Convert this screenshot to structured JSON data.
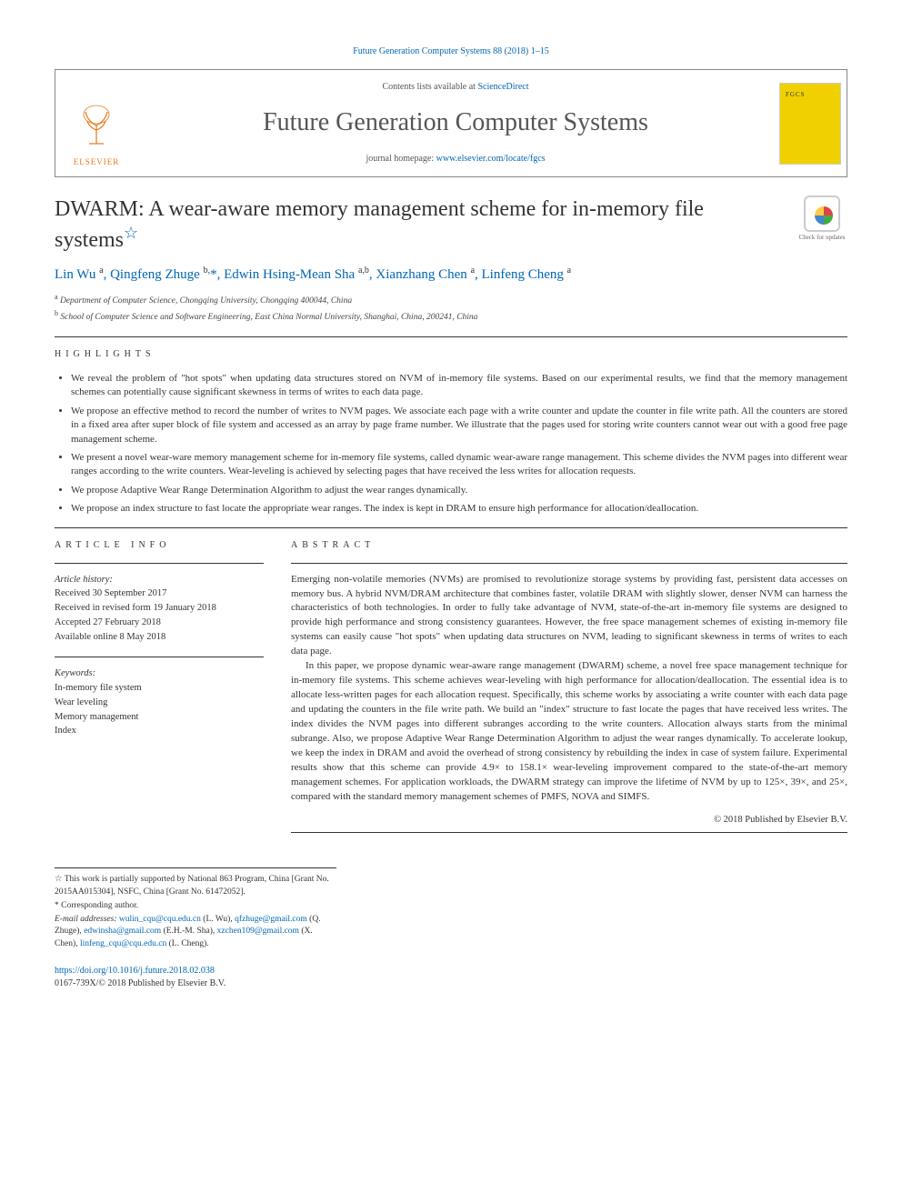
{
  "citation": "Future Generation Computer Systems 88 (2018) 1–15",
  "header": {
    "publisher": "ELSEVIER",
    "contents_prefix": "Contents lists available at ",
    "contents_link": "ScienceDirect",
    "journal": "Future Generation Computer Systems",
    "homepage_prefix": "journal homepage: ",
    "homepage_url": "www.elsevier.com/locate/fgcs"
  },
  "updates_badge": "Check for updates",
  "title": "DWARM: A wear-aware memory management scheme for in-memory file systems",
  "title_star": "☆",
  "authors_html": "Lin Wu <sup>a</sup>, Qingfeng Zhuge <sup>b,</sup>*, Edwin Hsing-Mean Sha <sup>a,b</sup>, Xianzhang Chen <sup>a</sup>, Linfeng Cheng <sup>a</sup>",
  "affiliations": {
    "a": "Department of Computer Science, Chongqing University, Chongqing 400044, China",
    "b": "School of Computer Science and Software Engineering, East China Normal University, Shanghai, China, 200241, China"
  },
  "highlights_label": "HIGHLIGHTS",
  "highlights": [
    "We reveal the problem of \"hot spots\" when updating data structures stored on NVM of in-memory file systems. Based on our experimental results, we find that the memory management schemes can potentially cause significant skewness in terms of writes to each data page.",
    "We propose an effective method to record the number of writes to NVM pages. We associate each page with a write counter and update the counter in file write path. All the counters are stored in a fixed area after super block of file system and accessed as an array by page frame number. We illustrate that the pages used for storing write counters cannot wear out with a good free page management scheme.",
    "We present a novel wear-ware memory management scheme for in-memory file systems, called dynamic wear-aware range management. This scheme divides the NVM pages into different wear ranges according to the write counters. Wear-leveling is achieved by selecting pages that have received the less writes for allocation requests.",
    "We propose Adaptive Wear Range Determination Algorithm to adjust the wear ranges dynamically.",
    "We propose an index structure to fast locate the appropriate wear ranges. The index is kept in DRAM to ensure high performance for allocation/deallocation."
  ],
  "article_info_label": "ARTICLE INFO",
  "abstract_label": "ABSTRACT",
  "article_history": {
    "label": "Article history:",
    "received": "Received 30 September 2017",
    "revised": "Received in revised form 19 January 2018",
    "accepted": "Accepted 27 February 2018",
    "online": "Available online 8 May 2018"
  },
  "keywords": {
    "label": "Keywords:",
    "items": [
      "In-memory file system",
      "Wear leveling",
      "Memory management",
      "Index"
    ]
  },
  "abstract": {
    "p1": "Emerging non-volatile memories (NVMs) are promised to revolutionize storage systems by providing fast, persistent data accesses on memory bus. A hybrid NVM/DRAM architecture that combines faster, volatile DRAM with slightly slower, denser NVM can harness the characteristics of both technologies. In order to fully take advantage of NVM, state-of-the-art in-memory file systems are designed to provide high performance and strong consistency guarantees. However, the free space management schemes of existing in-memory file systems can easily cause \"hot spots\" when updating data structures on NVM, leading to significant skewness in terms of writes to each data page.",
    "p2": "In this paper, we propose dynamic wear-aware range management (DWARM) scheme, a novel free space management technique for in-memory file systems. This scheme achieves wear-leveling with high performance for allocation/deallocation. The essential idea is to allocate less-written pages for each allocation request. Specifically, this scheme works by associating a write counter with each data page and updating the counters in the file write path. We build an \"index\" structure to fast locate the pages that have received less writes. The index divides the NVM pages into different subranges according to the write counters. Allocation always starts from the minimal subrange. Also, we propose Adaptive Wear Range Determination Algorithm to adjust the wear ranges dynamically. To accelerate lookup, we keep the index in DRAM and avoid the overhead of strong consistency by rebuilding the index in case of system failure. Experimental results show that this scheme can provide 4.9× to 158.1× wear-leveling improvement compared to the state-of-the-art memory management schemes. For application workloads, the DWARM strategy can improve the lifetime of NVM by up to 125×, 39×, and 25×, compared with the standard memory management schemes of PMFS, NOVA and SIMFS."
  },
  "copyright": "© 2018 Published by Elsevier B.V.",
  "footnotes": {
    "funding": "This work is partially supported by National 863 Program, China [Grant No. 2015AA015304], NSFC, China [Grant No. 61472052].",
    "corresponding": "Corresponding author.",
    "emails_label": "E-mail addresses:",
    "emails": [
      {
        "addr": "wulin_cqu@cqu.edu.cn",
        "who": "(L. Wu)"
      },
      {
        "addr": "qfzhuge@gmail.com",
        "who": ""
      },
      {
        "addr_who": "(Q. Zhuge),"
      },
      {
        "addr": "edwinsha@gmail.com",
        "who": "(E.H.-M. Sha)"
      },
      {
        "addr": "xzchen109@gmail.com",
        "who": "(X. Chen)"
      },
      {
        "addr": "linfeng_cqu@cqu.edu.cn",
        "who": "(L. Cheng)."
      }
    ]
  },
  "doi": "https://doi.org/10.1016/j.future.2018.02.038",
  "issn_line": "0167-739X/© 2018 Published by Elsevier B.V."
}
